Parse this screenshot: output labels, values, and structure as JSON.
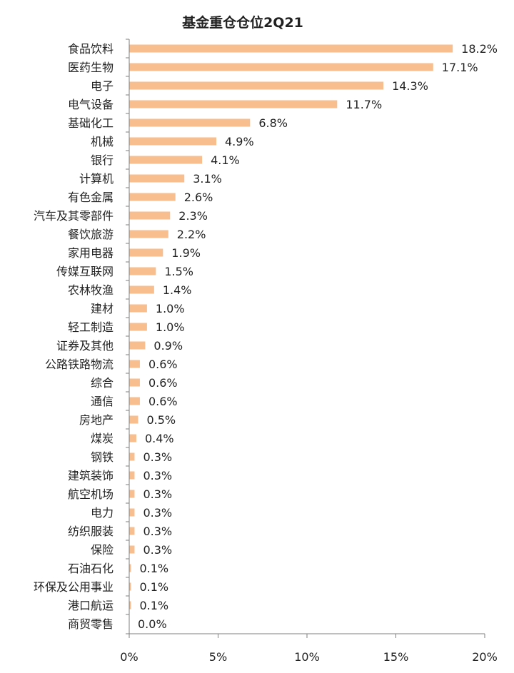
{
  "chart_data": {
    "type": "bar",
    "orientation": "horizontal",
    "title": "基金重仓仓位2Q21",
    "categories": [
      "食品饮料",
      "医药生物",
      "电子",
      "电气设备",
      "基础化工",
      "机械",
      "银行",
      "计算机",
      "有色金属",
      "汽车及其零部件",
      "餐饮旅游",
      "家用电器",
      "传媒互联网",
      "农林牧渔",
      "建材",
      "轻工制造",
      "证券及其他",
      "公路铁路物流",
      "综合",
      "通信",
      "房地产",
      "煤炭",
      "钢铁",
      "建筑装饰",
      "航空机场",
      "电力",
      "纺织服装",
      "保险",
      "石油石化",
      "环保及公用事业",
      "港口航运",
      "商贸零售"
    ],
    "values": [
      18.2,
      17.1,
      14.3,
      11.7,
      6.8,
      4.9,
      4.1,
      3.1,
      2.6,
      2.3,
      2.2,
      1.9,
      1.5,
      1.4,
      1.0,
      1.0,
      0.9,
      0.6,
      0.6,
      0.6,
      0.5,
      0.4,
      0.3,
      0.3,
      0.3,
      0.3,
      0.3,
      0.3,
      0.1,
      0.1,
      0.1,
      0.0
    ],
    "value_labels": [
      "18.2%",
      "17.1%",
      "14.3%",
      "11.7%",
      "6.8%",
      "4.9%",
      "4.1%",
      "3.1%",
      "2.6%",
      "2.3%",
      "2.2%",
      "1.9%",
      "1.5%",
      "1.4%",
      "1.0%",
      "1.0%",
      "0.9%",
      "0.6%",
      "0.6%",
      "0.6%",
      "0.5%",
      "0.4%",
      "0.3%",
      "0.3%",
      "0.3%",
      "0.3%",
      "0.3%",
      "0.3%",
      "0.1%",
      "0.1%",
      "0.1%",
      "0.0%"
    ],
    "xlim": [
      0,
      20
    ],
    "x_ticks": [
      0,
      5,
      10,
      15,
      20
    ],
    "x_tick_labels": [
      "0%",
      "5%",
      "10%",
      "15%",
      "20%"
    ],
    "xlabel": "",
    "ylabel": "",
    "grid": false,
    "legend": "none",
    "bar_color": "#F8BE8E",
    "axis_color": "#7f7f7f"
  }
}
